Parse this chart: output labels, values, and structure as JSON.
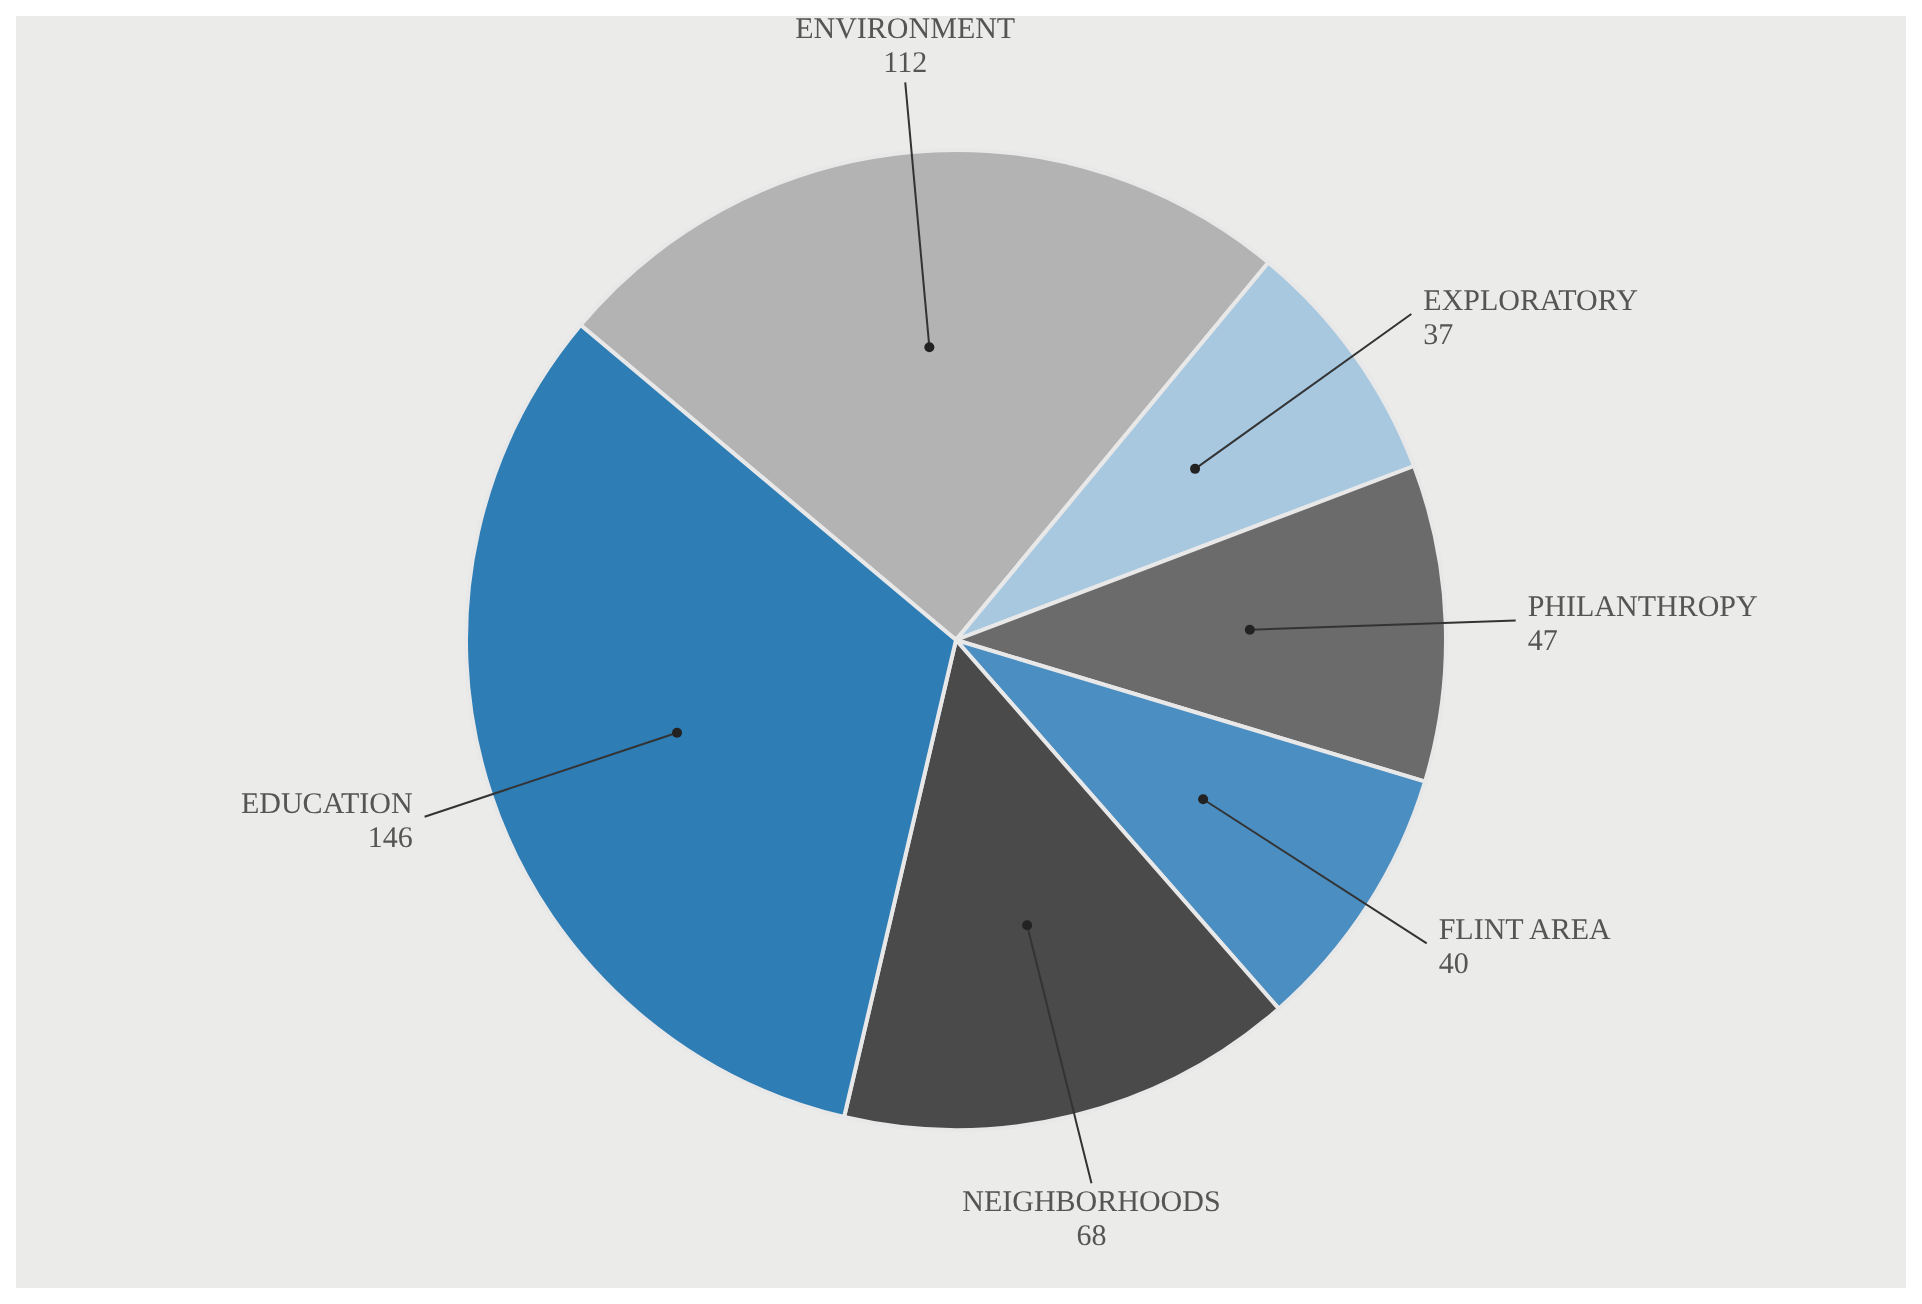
{
  "chart_data": {
    "type": "pie",
    "categories": [
      "ENVIRONMENT",
      "EXPLORATORY",
      "PHILANTHROPY",
      "FLINT AREA",
      "NEIGHBORHOODS",
      "EDUCATION"
    ],
    "values": [
      112,
      37,
      47,
      40,
      68,
      146
    ],
    "colors": [
      "#b3b3b3",
      "#a8c8e0",
      "#6b6b6b",
      "#4b8fc2",
      "#4a4a4a",
      "#2e7db5"
    ],
    "data_labels": true
  }
}
